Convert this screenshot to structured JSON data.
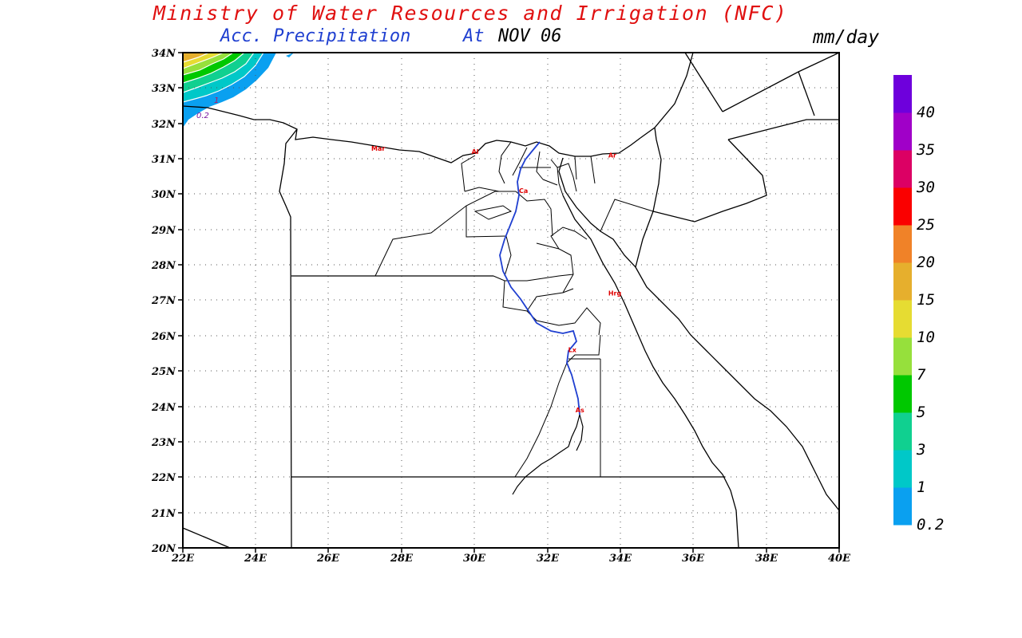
{
  "header": {
    "title": "Ministry of Water Resources and Irrigation (NFC)",
    "subtitle_prefix": "Acc. Precipitation",
    "subtitle_at": "At",
    "subtitle_date": "NOV 06",
    "units": "mm/day"
  },
  "map": {
    "lon_range": [
      22,
      40
    ],
    "lat_range": [
      20,
      34
    ],
    "lon_ticks": [
      "22E",
      "24E",
      "26E",
      "28E",
      "30E",
      "32E",
      "34E",
      "36E",
      "38E",
      "40E"
    ],
    "lat_ticks": [
      "20N",
      "21N",
      "22N",
      "23N",
      "24N",
      "25N",
      "26N",
      "27N",
      "28N",
      "29N",
      "30N",
      "31N",
      "32N",
      "33N",
      "34N"
    ],
    "grid": "dotted",
    "cities": [
      {
        "label": "Mar",
        "lon": 27.3,
        "lat": 31.3
      },
      {
        "label": "Al",
        "lon": 30.05,
        "lat": 31.2
      },
      {
        "label": "Ar",
        "lon": 33.8,
        "lat": 31.1
      },
      {
        "label": "Ca",
        "lon": 31.35,
        "lat": 30.1
      },
      {
        "label": "Hrg",
        "lon": 33.8,
        "lat": 27.2
      },
      {
        "label": "Lx",
        "lon": 32.7,
        "lat": 25.6
      },
      {
        "label": "As",
        "lon": 32.9,
        "lat": 23.9
      }
    ],
    "contour_labels": [
      {
        "text": "1",
        "color": "#c01060"
      },
      {
        "text": "0.2",
        "color": "#7a1aa0"
      }
    ]
  },
  "colorbar": {
    "colors": [
      "#0aa0f0",
      "#00c8c8",
      "#10d090",
      "#00c800",
      "#96e03c",
      "#e6dc32",
      "#e6af2d",
      "#f08228",
      "#fa0000",
      "#dc0064",
      "#a000c8",
      "#6e00dc"
    ],
    "labels": [
      "0.2",
      "1",
      "3",
      "5",
      "7",
      "10",
      "15",
      "20",
      "25",
      "30",
      "35",
      "40"
    ]
  },
  "colors": {
    "title": "#e01010",
    "subtitle": "#1f3fd0",
    "date": "#000000",
    "nile": "#1f3fd0",
    "city": "#e00000"
  }
}
